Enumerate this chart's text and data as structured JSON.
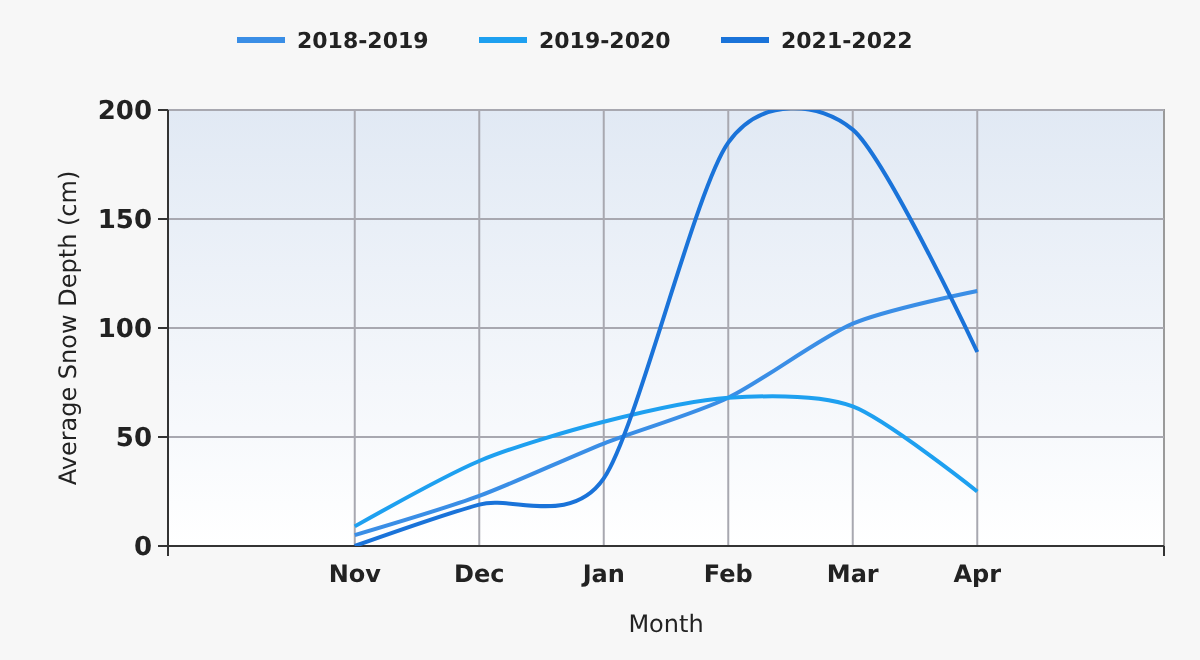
{
  "chart_data": {
    "type": "line",
    "xlabel": "Month",
    "ylabel": "Average Snow Depth (cm)",
    "categories": [
      null,
      "Nov",
      "Dec",
      "Jan",
      "Feb",
      "Mar",
      "Apr",
      null
    ],
    "series": [
      {
        "name": "2018-2019",
        "color": "#3a8ee6",
        "values": [
          null,
          5,
          23,
          47,
          68,
          102,
          117,
          null
        ]
      },
      {
        "name": "2019-2020",
        "color": "#1ea0f0",
        "values": [
          null,
          9,
          39,
          57,
          68,
          64,
          25,
          null
        ]
      },
      {
        "name": "2021-2022",
        "color": "#1a73d9",
        "values": [
          null,
          0,
          19,
          31,
          185,
          191,
          89,
          null
        ]
      }
    ],
    "ylim": [
      0,
      200
    ],
    "yticks": [
      0,
      50,
      100,
      150,
      200
    ],
    "grid": true,
    "legend": "top",
    "marker": "none",
    "line_style": "solid"
  }
}
